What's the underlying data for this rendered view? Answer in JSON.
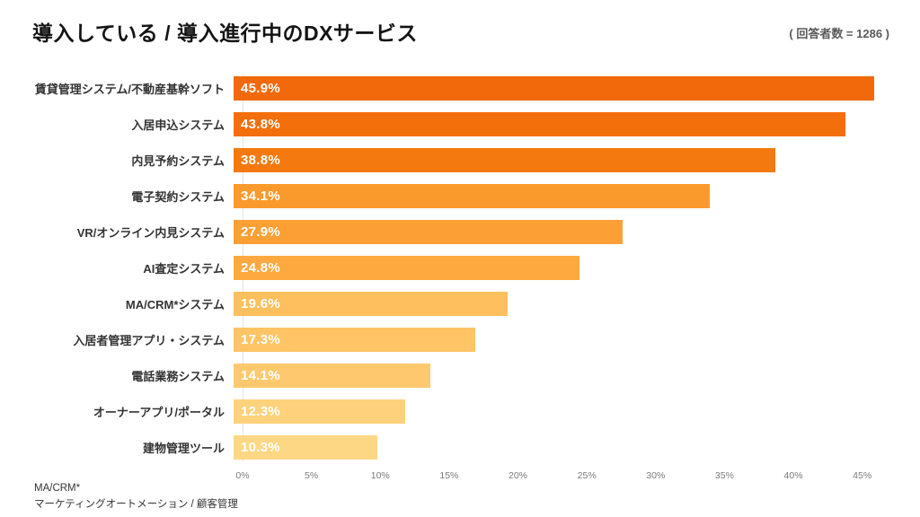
{
  "header": {
    "title": "導入している / 導入進行中のDXサービス",
    "respondents_note": "( 回答者数 = 1286 )"
  },
  "footnote": {
    "line1": "MA/CRM*",
    "line2": "マーケティングオートメーション / 顧客管理"
  },
  "chart_data": {
    "type": "bar",
    "orientation": "horizontal",
    "title": "導入している / 導入進行中のDXサービス",
    "categories": [
      "賃貸管理システム/不動産基幹ソフト",
      "入居申込システム",
      "内見予約システム",
      "電子契約システム",
      "VR/オンライン内見システム",
      "AI査定システム",
      "MA/CRM*システム",
      "入居者管理アプリ・システム",
      "電話業務システム",
      "オーナーアプリ/ポータル",
      "建物管理ツール"
    ],
    "values": [
      45.9,
      43.8,
      38.8,
      34.1,
      27.9,
      24.8,
      19.6,
      17.3,
      14.1,
      12.3,
      10.3
    ],
    "value_labels": [
      "45.9%",
      "43.8%",
      "38.8%",
      "34.1%",
      "27.9%",
      "24.8%",
      "19.6%",
      "17.3%",
      "14.1%",
      "12.3%",
      "10.3%"
    ],
    "bar_colors": [
      "#f2690b",
      "#f36f0c",
      "#f4790e",
      "#fb9a2c",
      "#fca035",
      "#fda940",
      "#febf5e",
      "#fec466",
      "#fec96e",
      "#fed27c",
      "#fed785"
    ],
    "xlabel": "",
    "ylabel": "",
    "xlim": [
      0,
      47.5
    ],
    "x_tick_values": [
      0,
      5,
      10,
      15,
      20,
      25,
      30,
      35,
      40,
      45
    ],
    "x_tick_labels": [
      "0%",
      "5%",
      "10%",
      "15%",
      "20%",
      "25%",
      "30%",
      "35%",
      "40%",
      "45%"
    ],
    "grid": false,
    "legend": "none",
    "value_label_position": "inside-left",
    "value_label_color": "#ffffff"
  }
}
